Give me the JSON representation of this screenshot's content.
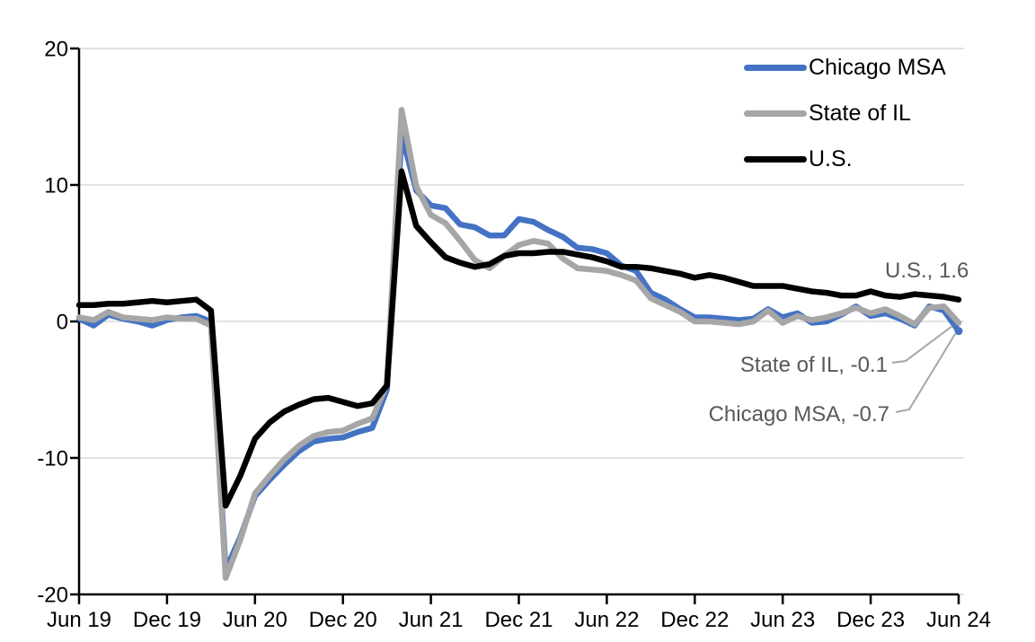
{
  "chart_data": {
    "type": "line",
    "title": "",
    "x_unit": "month",
    "x_start_label": "Jun 19",
    "x_end_label": "Jun 24",
    "x_tick_labels": [
      "Jun 19",
      "Dec 19",
      "Jun 20",
      "Dec 20",
      "Jun 21",
      "Dec 21",
      "Jun 22",
      "Dec 22",
      "Jun 23",
      "Dec 23",
      "Jun 24"
    ],
    "y_ticks": [
      20,
      10,
      0,
      -10,
      -20
    ],
    "ylim": [
      -20,
      20
    ],
    "grid": true,
    "legend_position": "top-right",
    "style": {
      "grid_color": "#D9D9D9",
      "axis_color": "#000000",
      "annotation_text_color": "#595959",
      "leader_line_color": "#A6A6A6"
    },
    "series": [
      {
        "name": "Chicago MSA",
        "color": "#4472C4",
        "end_marker": true,
        "values": [
          0.2,
          -0.3,
          0.5,
          0.2,
          0.0,
          -0.3,
          0.1,
          0.3,
          0.4,
          0.0,
          -18.2,
          -15.8,
          -12.8,
          -11.6,
          -10.5,
          -9.5,
          -8.8,
          -8.6,
          -8.5,
          -8.1,
          -7.8,
          -5.0,
          13.7,
          9.6,
          8.5,
          8.3,
          7.1,
          6.9,
          6.3,
          6.3,
          7.5,
          7.3,
          6.7,
          6.2,
          5.4,
          5.3,
          5.0,
          4.1,
          3.7,
          2.1,
          1.6,
          0.9,
          0.3,
          0.3,
          0.2,
          0.1,
          0.2,
          0.9,
          0.3,
          0.6,
          -0.1,
          0.0,
          0.5,
          1.1,
          0.4,
          0.6,
          0.2,
          -0.3,
          1.1,
          0.8,
          -0.7
        ]
      },
      {
        "name": "State of IL",
        "color": "#A6A6A6",
        "end_marker": false,
        "values": [
          0.3,
          0.1,
          0.7,
          0.3,
          0.2,
          0.1,
          0.3,
          0.2,
          0.2,
          -0.3,
          -18.8,
          -16.0,
          -12.6,
          -11.3,
          -10.1,
          -9.1,
          -8.4,
          -8.1,
          -8.0,
          -7.5,
          -7.1,
          -4.6,
          15.5,
          9.9,
          7.8,
          7.2,
          5.9,
          4.5,
          3.9,
          4.8,
          5.6,
          5.9,
          5.7,
          4.6,
          3.9,
          3.8,
          3.7,
          3.4,
          3.0,
          1.7,
          1.2,
          0.7,
          0.0,
          0.0,
          -0.1,
          -0.2,
          0.0,
          0.8,
          -0.1,
          0.4,
          0.1,
          0.3,
          0.6,
          1.0,
          0.6,
          0.9,
          0.4,
          -0.2,
          1.0,
          1.1,
          -0.1
        ]
      },
      {
        "name": "U.S.",
        "color": "#000000",
        "end_marker": false,
        "values": [
          1.2,
          1.2,
          1.3,
          1.3,
          1.4,
          1.5,
          1.4,
          1.5,
          1.6,
          0.8,
          -13.5,
          -11.3,
          -8.6,
          -7.4,
          -6.6,
          -6.1,
          -5.7,
          -5.6,
          -5.9,
          -6.2,
          -6.0,
          -4.7,
          11.0,
          7.0,
          5.8,
          4.7,
          4.3,
          4.0,
          4.2,
          4.8,
          5.0,
          5.0,
          5.1,
          5.1,
          4.9,
          4.7,
          4.4,
          4.0,
          4.0,
          3.9,
          3.7,
          3.5,
          3.2,
          3.4,
          3.2,
          2.9,
          2.6,
          2.6,
          2.6,
          2.4,
          2.2,
          2.1,
          1.9,
          1.9,
          2.2,
          1.9,
          1.8,
          2.0,
          1.9,
          1.8,
          1.6
        ]
      }
    ],
    "annotations": [
      {
        "text": "U.S., 1.6",
        "series": "U.S.",
        "value": 1.6
      },
      {
        "text": "State of IL, -0.1",
        "series": "State of IL",
        "value": -0.1
      },
      {
        "text": "Chicago MSA, -0.7",
        "series": "Chicago MSA",
        "value": -0.7
      }
    ]
  }
}
